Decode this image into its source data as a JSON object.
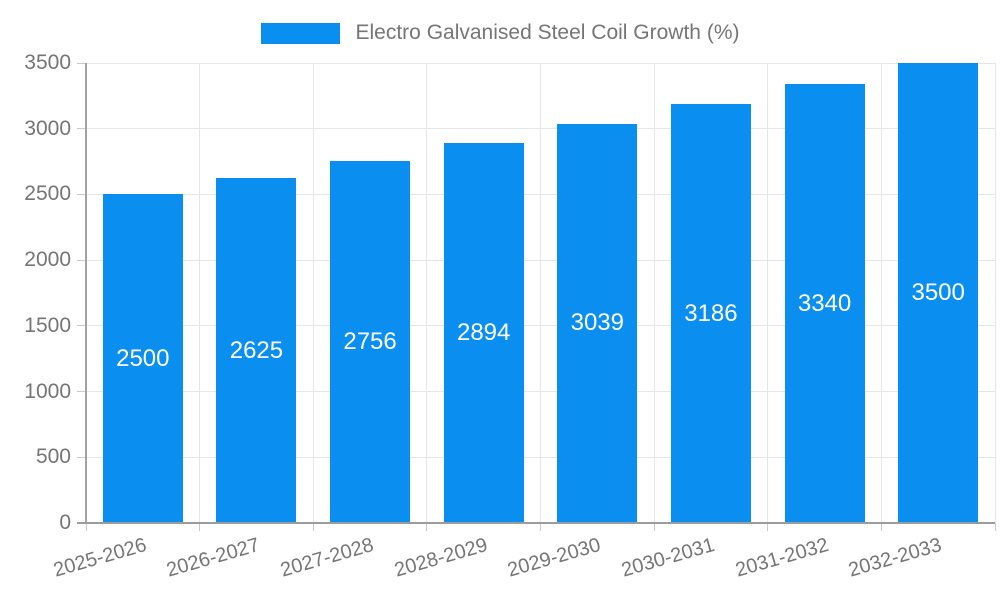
{
  "chart_data": {
    "type": "bar",
    "legend": {
      "label": "Electro Galvanised Steel Coil Growth (%)",
      "position": "top-center"
    },
    "categories": [
      "2025-2026",
      "2026-2027",
      "2027-2028",
      "2028-2029",
      "2029-2030",
      "2030-2031",
      "2031-2032",
      "2032-2033"
    ],
    "series": [
      {
        "name": "Electro Galvanised Steel Coil Growth (%)",
        "values": [
          2500,
          2625,
          2756,
          2894,
          3039,
          3186,
          3340,
          3500
        ]
      }
    ],
    "ylim": [
      0,
      3500
    ],
    "yticks": [
      0,
      500,
      1000,
      1500,
      2000,
      2500,
      3000,
      3500
    ],
    "grid": true,
    "value_labels_inside_bars": true,
    "colors": {
      "bar": "#0a8ff0",
      "value_label": "#ffffff",
      "axis_text": "#757575",
      "gridline": "#e6e6e6",
      "tick": "#c9c9c9",
      "axis_line": "#a2a2a2",
      "baseline": "#9c9c9c",
      "background": "#ffffff"
    }
  }
}
